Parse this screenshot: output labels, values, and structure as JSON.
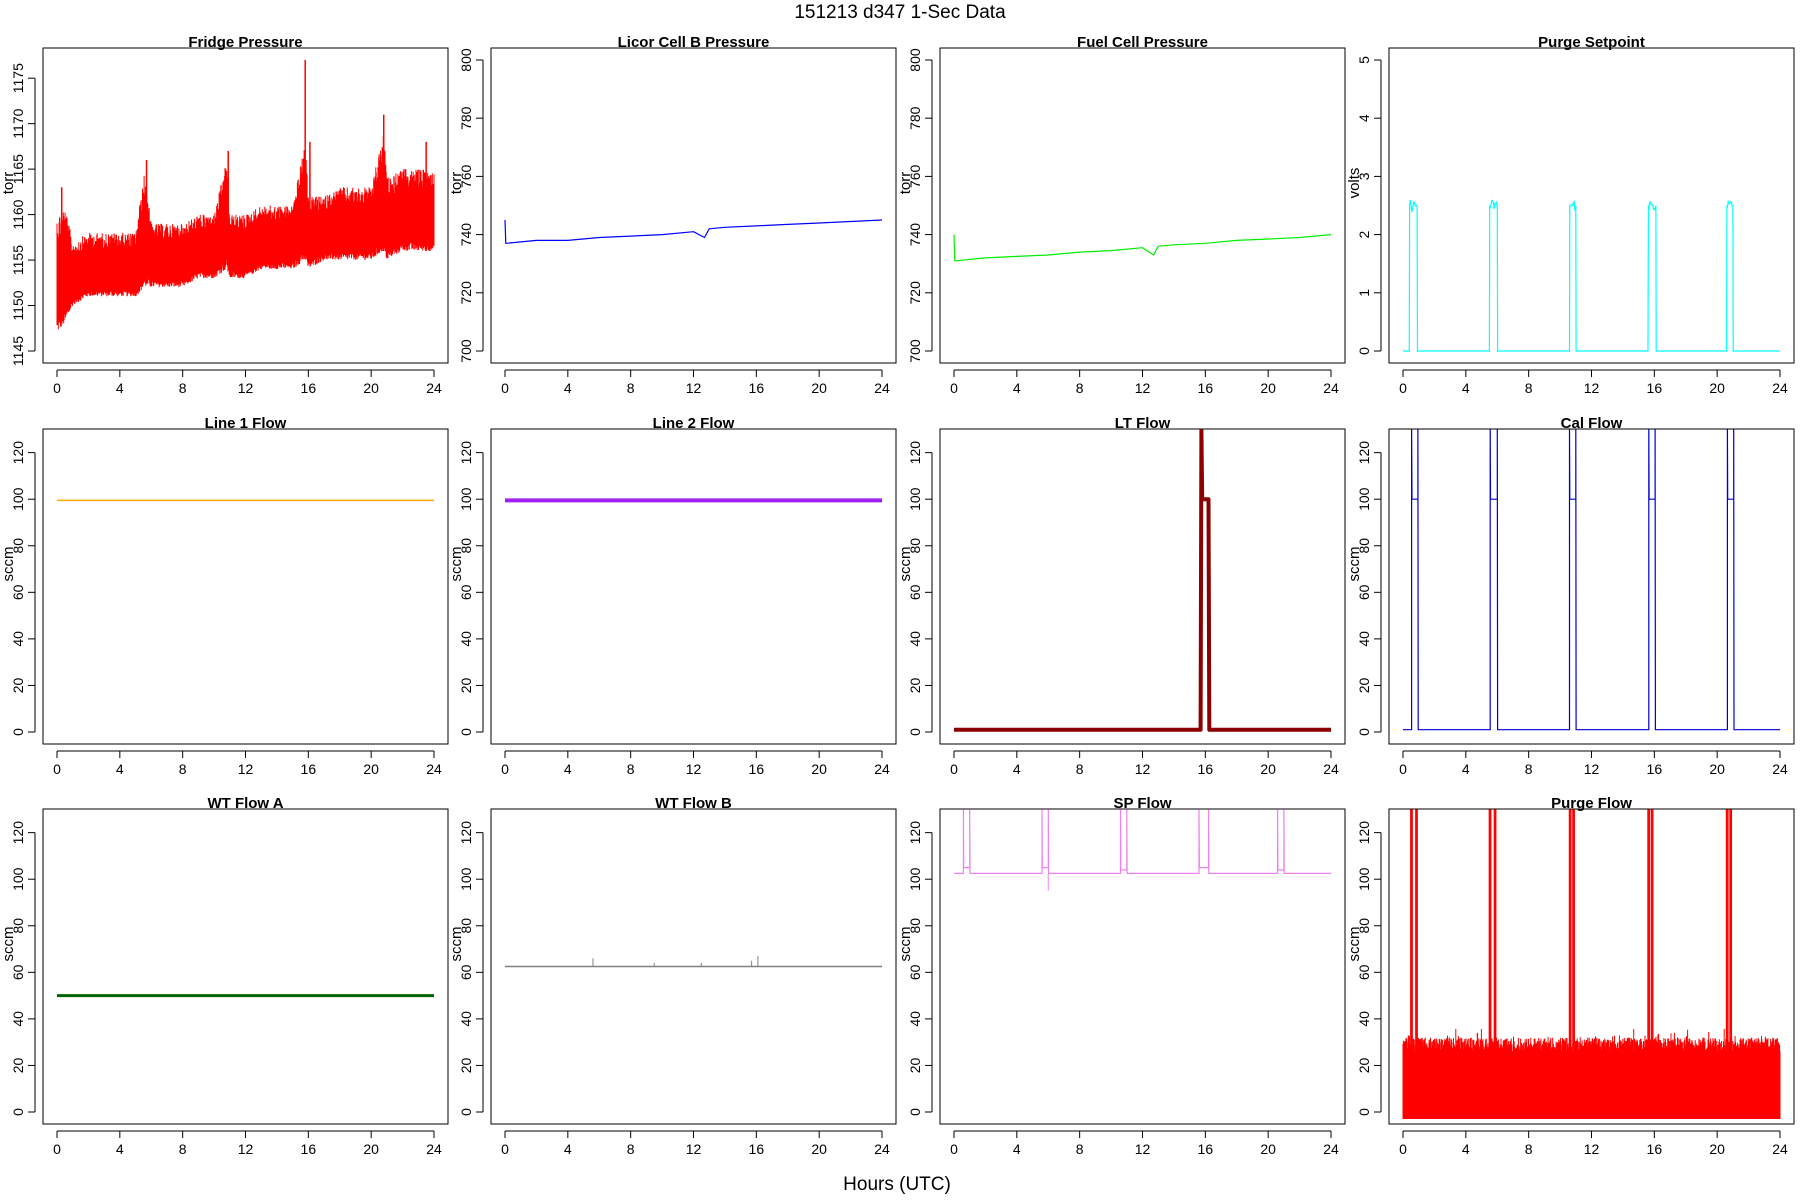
{
  "figure": {
    "title": "151213   d347   1-Sec Data",
    "xlabel": "Hours (UTC)"
  },
  "chart_data": [
    {
      "type": "line",
      "title": "Fridge Pressure",
      "ylabel": "torr",
      "xlim": [
        0,
        24
      ],
      "ylim": [
        1145,
        1177
      ],
      "xticks": [
        0,
        4,
        8,
        12,
        16,
        20,
        24
      ],
      "yticks": [
        1145,
        1150,
        1155,
        1160,
        1165,
        1170,
        1175
      ],
      "series": [
        {
          "color": "#ff0000",
          "style": "band",
          "x": [
            0,
            0.5,
            1,
            2,
            3,
            4,
            5,
            5.6,
            6,
            7,
            8,
            9,
            10,
            10.8,
            11,
            12,
            13,
            14,
            15,
            15.8,
            16,
            17,
            18,
            19,
            20,
            20.8,
            21,
            22,
            23,
            24
          ],
          "low": [
            1147,
            1148,
            1150,
            1151,
            1151,
            1151,
            1151,
            1152,
            1152,
            1152,
            1152,
            1153,
            1153,
            1154,
            1153,
            1153,
            1154,
            1154,
            1154,
            1155,
            1154,
            1155,
            1155,
            1155,
            1155,
            1156,
            1155,
            1156,
            1156,
            1156
          ],
          "high": [
            1160,
            1161,
            1157,
            1158,
            1158,
            1158,
            1158,
            1165,
            1159,
            1159,
            1159,
            1160,
            1160,
            1166,
            1160,
            1160,
            1161,
            1161,
            1161,
            1168,
            1162,
            1162,
            1163,
            1163,
            1163,
            1169,
            1164,
            1165,
            1165,
            1165
          ],
          "spikes": [
            [
              0.3,
              1163
            ],
            [
              5.7,
              1166
            ],
            [
              10.9,
              1167
            ],
            [
              15.8,
              1177
            ],
            [
              16.1,
              1168
            ],
            [
              20.8,
              1171
            ],
            [
              23.5,
              1168
            ]
          ]
        }
      ]
    },
    {
      "type": "line",
      "title": "Licor Cell B Pressure",
      "ylabel": "torr",
      "xlim": [
        0,
        24
      ],
      "ylim": [
        700,
        800
      ],
      "xticks": [
        0,
        4,
        8,
        12,
        16,
        20,
        24
      ],
      "yticks": [
        700,
        720,
        740,
        760,
        780,
        800
      ],
      "series": [
        {
          "color": "#0000ff",
          "x": [
            0,
            0.05,
            0.1,
            2,
            4,
            6,
            8,
            10,
            12,
            12.7,
            13,
            14,
            16,
            18,
            20,
            22,
            24
          ],
          "y": [
            745,
            737,
            737,
            738,
            738,
            739,
            739.5,
            740,
            741,
            739,
            742,
            742.5,
            743,
            743.5,
            744,
            744.5,
            745
          ]
        }
      ]
    },
    {
      "type": "line",
      "title": "Fuel Cell Pressure",
      "ylabel": "torr",
      "xlim": [
        0,
        24
      ],
      "ylim": [
        700,
        800
      ],
      "xticks": [
        0,
        4,
        8,
        12,
        16,
        20,
        24
      ],
      "yticks": [
        700,
        720,
        740,
        760,
        780,
        800
      ],
      "series": [
        {
          "color": "#00ee00",
          "x": [
            0,
            0.05,
            0.1,
            2,
            4,
            6,
            8,
            10,
            12,
            12.7,
            13,
            14,
            16,
            18,
            20,
            22,
            24
          ],
          "y": [
            740,
            731,
            731,
            732,
            732.5,
            733,
            734,
            734.5,
            735.5,
            733,
            736,
            736.5,
            737,
            738,
            738.5,
            739,
            740
          ]
        }
      ]
    },
    {
      "type": "line",
      "title": "Purge Setpoint",
      "ylabel": "volts",
      "xlim": [
        0,
        24
      ],
      "ylim": [
        0,
        5
      ],
      "xticks": [
        0,
        4,
        8,
        12,
        16,
        20,
        24
      ],
      "yticks": [
        0,
        1,
        2,
        3,
        4,
        5
      ],
      "series": [
        {
          "color": "#00ffff",
          "pulses": [
            [
              0.4,
              0.9,
              2.5
            ],
            [
              5.5,
              6.0,
              2.5
            ],
            [
              10.6,
              11.0,
              2.5
            ],
            [
              15.6,
              16.1,
              2.5
            ],
            [
              20.6,
              21.0,
              2.5
            ]
          ],
          "baseline": 0
        }
      ]
    },
    {
      "type": "line",
      "title": "Line 1 Flow",
      "ylabel": "sccm",
      "xlim": [
        0,
        24
      ],
      "ylim": [
        0,
        125
      ],
      "xticks": [
        0,
        4,
        8,
        12,
        16,
        20,
        24
      ],
      "yticks": [
        0,
        20,
        40,
        60,
        80,
        100,
        120
      ],
      "series": [
        {
          "color": "#ffa500",
          "x": [
            0,
            24
          ],
          "y": [
            99.5,
            99.5
          ],
          "width": 1.5
        }
      ]
    },
    {
      "type": "line",
      "title": "Line 2 Flow",
      "ylabel": "sccm",
      "xlim": [
        0,
        24
      ],
      "ylim": [
        0,
        125
      ],
      "xticks": [
        0,
        4,
        8,
        12,
        16,
        20,
        24
      ],
      "yticks": [
        0,
        20,
        40,
        60,
        80,
        100,
        120
      ],
      "series": [
        {
          "color": "#a020f0",
          "x": [
            0,
            24
          ],
          "y": [
            99.5,
            99.5
          ],
          "width": 4
        }
      ]
    },
    {
      "type": "line",
      "title": "LT Flow",
      "ylabel": "sccm",
      "xlim": [
        0,
        24
      ],
      "ylim": [
        0,
        125
      ],
      "xticks": [
        0,
        4,
        8,
        12,
        16,
        20,
        24
      ],
      "yticks": [
        0,
        20,
        40,
        60,
        80,
        100,
        120
      ],
      "series": [
        {
          "color": "#8b0000",
          "x": [
            0,
            15.7,
            15.75,
            15.8,
            15.85,
            16.2,
            16.25,
            16.3,
            24
          ],
          "y": [
            1,
            1,
            130,
            100,
            100,
            100,
            1,
            1,
            1
          ],
          "width": 4
        }
      ]
    },
    {
      "type": "line",
      "title": "Cal Flow",
      "ylabel": "sccm",
      "xlim": [
        0,
        24
      ],
      "ylim": [
        0,
        125
      ],
      "xticks": [
        0,
        4,
        8,
        12,
        16,
        20,
        24
      ],
      "yticks": [
        0,
        20,
        40,
        60,
        80,
        100,
        120
      ],
      "series": [
        {
          "color": "#0000cd",
          "pulses": [
            [
              0.55,
              0.95,
              100
            ],
            [
              5.55,
              6.0,
              100
            ],
            [
              10.6,
              11.0,
              100
            ],
            [
              15.65,
              16.05,
              100
            ],
            [
              20.65,
              21.05,
              100
            ]
          ],
          "overshoot": 130,
          "baseline": 1
        }
      ]
    },
    {
      "type": "line",
      "title": "WT Flow A",
      "ylabel": "sccm",
      "xlim": [
        0,
        24
      ],
      "ylim": [
        0,
        125
      ],
      "xticks": [
        0,
        4,
        8,
        12,
        16,
        20,
        24
      ],
      "yticks": [
        0,
        20,
        40,
        60,
        80,
        100,
        120
      ],
      "series": [
        {
          "color": "#006400",
          "x": [
            0,
            24
          ],
          "y": [
            50,
            50
          ],
          "width": 3
        }
      ]
    },
    {
      "type": "line",
      "title": "WT Flow B",
      "ylabel": "sccm",
      "xlim": [
        0,
        24
      ],
      "ylim": [
        0,
        125
      ],
      "xticks": [
        0,
        4,
        8,
        12,
        16,
        20,
        24
      ],
      "yticks": [
        0,
        20,
        40,
        60,
        80,
        100,
        120
      ],
      "series": [
        {
          "color": "#808080",
          "x": [
            0,
            24
          ],
          "y": [
            62.5,
            62.5
          ],
          "width": 1.5,
          "spikes": [
            [
              5.6,
              66
            ],
            [
              15.7,
              65
            ],
            [
              16.1,
              67
            ],
            [
              9.5,
              64
            ],
            [
              12.5,
              64
            ]
          ]
        }
      ]
    },
    {
      "type": "line",
      "title": "SP Flow",
      "ylabel": "sccm",
      "xlim": [
        0,
        24
      ],
      "ylim": [
        0,
        125
      ],
      "xticks": [
        0,
        4,
        8,
        12,
        16,
        20,
        24
      ],
      "yticks": [
        0,
        20,
        40,
        60,
        80,
        100,
        120
      ],
      "series": [
        {
          "color": "#ee82ee",
          "baseline": 102.5,
          "pulses": [
            [
              0.6,
              1.0,
              105
            ],
            [
              5.6,
              6.0,
              105
            ],
            [
              10.6,
              11.0,
              104
            ],
            [
              15.6,
              16.2,
              105
            ],
            [
              20.6,
              21.0,
              104
            ]
          ],
          "overshoot": 130,
          "dip": [
            6.0,
            95
          ]
        }
      ]
    },
    {
      "type": "line",
      "title": "Purge Flow",
      "ylabel": "sccm",
      "xlim": [
        0,
        24
      ],
      "ylim": [
        0,
        125
      ],
      "xticks": [
        0,
        4,
        8,
        12,
        16,
        20,
        24
      ],
      "yticks": [
        0,
        20,
        40,
        60,
        80,
        100,
        120
      ],
      "series": [
        {
          "color": "#ff0000",
          "style": "noise",
          "low": -3,
          "high": 32,
          "pulses": [
            [
              0.5,
              0.9
            ],
            [
              5.5,
              5.9
            ],
            [
              10.6,
              10.9
            ],
            [
              15.6,
              15.9
            ],
            [
              20.6,
              20.9
            ]
          ],
          "overshoot": 130
        }
      ]
    }
  ]
}
